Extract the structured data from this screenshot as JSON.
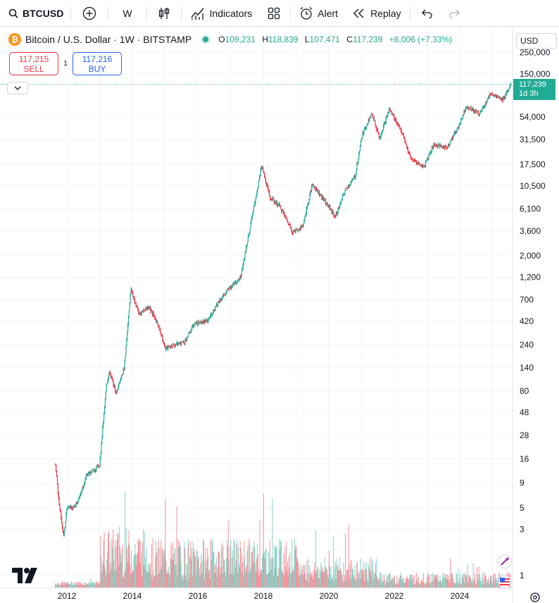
{
  "toolbar": {
    "symbol": "BTCUSD",
    "interval": "W",
    "indicators_label": "Indicators",
    "alert_label": "Alert",
    "replay_label": "Replay"
  },
  "legend": {
    "title": "Bitcoin / U.S. Dollar · 1W · BITSTAMP",
    "coin_glyph": "₿",
    "open_key": "O",
    "open": "109,231",
    "high_key": "H",
    "high": "118,839",
    "low_key": "L",
    "low": "107,471",
    "close_key": "C",
    "close": "117,239",
    "change": "+8,006 (+7.33%)"
  },
  "trade": {
    "sell_price": "117,215",
    "sell_label": "SELL",
    "spread": "1",
    "buy_price": "117,216",
    "buy_label": "BUY"
  },
  "currency": "USD",
  "price_tag": {
    "price": "117,239",
    "countdown": "1d 3h"
  },
  "colors": {
    "up": "#22ab94",
    "down": "#f23645",
    "accent": "#2962ff",
    "grid": "#f0f3fa"
  },
  "chart_data": {
    "type": "candlestick",
    "scale": "log",
    "x_ticks": [
      "2012",
      "2014",
      "2016",
      "2018",
      "2020",
      "2022",
      "2024"
    ],
    "y_ticks": [
      {
        "label": "250,000",
        "value": 250000
      },
      {
        "label": "150,000",
        "value": 150000
      },
      {
        "label": "54,000",
        "value": 54000
      },
      {
        "label": "31,500",
        "value": 31500
      },
      {
        "label": "17,500",
        "value": 17500
      },
      {
        "label": "10,500",
        "value": 10500
      },
      {
        "label": "6,100",
        "value": 6100
      },
      {
        "label": "3,600",
        "value": 3600
      },
      {
        "label": "2,000",
        "value": 2000
      },
      {
        "label": "1,200",
        "value": 1200
      },
      {
        "label": "700",
        "value": 700
      },
      {
        "label": "420",
        "value": 420
      },
      {
        "label": "240",
        "value": 240
      },
      {
        "label": "140",
        "value": 140
      },
      {
        "label": "80",
        "value": 80
      },
      {
        "label": "48",
        "value": 48
      },
      {
        "label": "28",
        "value": 28
      },
      {
        "label": "16",
        "value": 16
      },
      {
        "label": "9",
        "value": 9
      },
      {
        "label": "5",
        "value": 5
      },
      {
        "label": "3",
        "value": 3
      },
      {
        "label": "1",
        "value": 1
      }
    ],
    "price_path": [
      [
        2011.65,
        14
      ],
      [
        2011.75,
        6
      ],
      [
        2011.9,
        2.5
      ],
      [
        2012.0,
        5
      ],
      [
        2012.2,
        5
      ],
      [
        2012.4,
        6.5
      ],
      [
        2012.6,
        11
      ],
      [
        2012.8,
        12
      ],
      [
        2013.0,
        14
      ],
      [
        2013.2,
        90
      ],
      [
        2013.3,
        130
      ],
      [
        2013.5,
        75
      ],
      [
        2013.75,
        140
      ],
      [
        2013.95,
        900
      ],
      [
        2014.0,
        800
      ],
      [
        2014.2,
        500
      ],
      [
        2014.5,
        600
      ],
      [
        2014.8,
        380
      ],
      [
        2015.0,
        220
      ],
      [
        2015.3,
        240
      ],
      [
        2015.6,
        260
      ],
      [
        2015.9,
        400
      ],
      [
        2016.3,
        420
      ],
      [
        2016.6,
        650
      ],
      [
        2017.0,
        950
      ],
      [
        2017.3,
        1200
      ],
      [
        2017.6,
        4000
      ],
      [
        2017.95,
        17000
      ],
      [
        2018.2,
        8000
      ],
      [
        2018.5,
        6500
      ],
      [
        2018.9,
        3500
      ],
      [
        2019.2,
        4000
      ],
      [
        2019.5,
        11000
      ],
      [
        2019.9,
        7200
      ],
      [
        2020.2,
        5000
      ],
      [
        2020.5,
        9500
      ],
      [
        2020.8,
        13000
      ],
      [
        2021.0,
        33000
      ],
      [
        2021.3,
        60000
      ],
      [
        2021.55,
        33000
      ],
      [
        2021.85,
        65000
      ],
      [
        2022.2,
        40000
      ],
      [
        2022.5,
        20000
      ],
      [
        2022.9,
        16500
      ],
      [
        2023.2,
        28000
      ],
      [
        2023.6,
        26000
      ],
      [
        2023.95,
        42000
      ],
      [
        2024.2,
        70000
      ],
      [
        2024.6,
        58000
      ],
      [
        2024.95,
        95000
      ],
      [
        2025.3,
        80000
      ],
      [
        2025.55,
        117239
      ]
    ]
  }
}
